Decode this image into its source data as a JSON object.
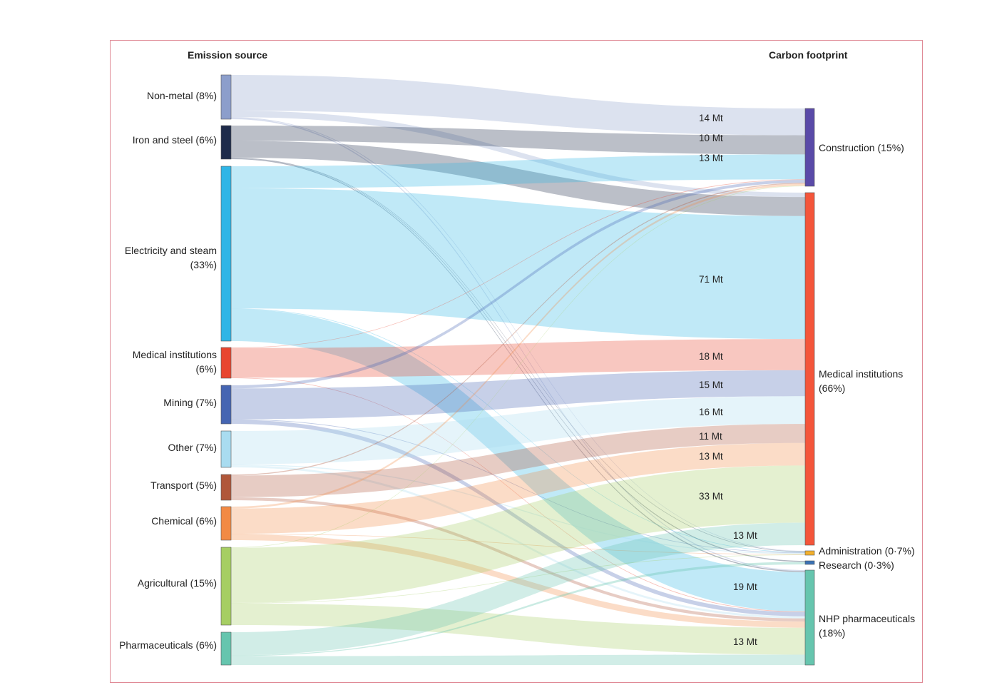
{
  "headers": {
    "left": "Emission source",
    "right": "Carbon footprint"
  },
  "sources": [
    {
      "id": "nonmetal",
      "label": "Non-metal (8%)",
      "color": "#8c9ecb"
    },
    {
      "id": "iron",
      "label": "Iron and steel (6%)",
      "color": "#1e2b4a"
    },
    {
      "id": "elec",
      "label": "Electricity and steam (33%)",
      "color": "#2fb5e6"
    },
    {
      "id": "medsrc",
      "label": "Medical institutions (6%)",
      "color": "#e8452f"
    },
    {
      "id": "mining",
      "label": "Mining (7%)",
      "color": "#4565b2"
    },
    {
      "id": "other",
      "label": "Other (7%)",
      "color": "#a9dcf0"
    },
    {
      "id": "transport",
      "label": "Transport (5%)",
      "color": "#b0573a"
    },
    {
      "id": "chemical",
      "label": "Chemical (6%)",
      "color": "#f28a44"
    },
    {
      "id": "agri",
      "label": "Agricultural (15%)",
      "color": "#a6ce63"
    },
    {
      "id": "pharma",
      "label": "Pharmaceuticals (6%)",
      "color": "#66c5ae"
    }
  ],
  "targets": [
    {
      "id": "construction",
      "label": "Construction (15%)",
      "color": "#5a4aa8"
    },
    {
      "id": "medical",
      "label": "Medical institutions (66%)",
      "color": "#f4553a"
    },
    {
      "id": "admin",
      "label": "Administration (0·7%)",
      "color": "#f2b02d"
    },
    {
      "id": "research",
      "label": "Research (0·3%)",
      "color": "#3a72b5"
    },
    {
      "id": "nhp",
      "label": "NHP pharmaceuticals (18%)",
      "color": "#66c5ae"
    }
  ],
  "flow_labels": [
    "14 Mt",
    "10 Mt",
    "13 Mt",
    "71 Mt",
    "18 Mt",
    "15 Mt",
    "16 Mt",
    "11 Mt",
    "13 Mt",
    "33 Mt",
    "13 Mt",
    "19 Mt",
    "13 Mt"
  ],
  "flows": [
    {
      "source": "nonmetal",
      "target": "construction",
      "value": 14
    },
    {
      "source": "nonmetal",
      "target": "medical",
      "value": 2.5
    },
    {
      "source": "nonmetal",
      "target": "admin",
      "value": 0.3
    },
    {
      "source": "nonmetal",
      "target": "nhp",
      "value": 0.5
    },
    {
      "source": "iron",
      "target": "construction",
      "value": 10
    },
    {
      "source": "iron",
      "target": "medical",
      "value": 11
    },
    {
      "source": "iron",
      "target": "admin",
      "value": 0.3
    },
    {
      "source": "iron",
      "target": "research",
      "value": 0.2
    },
    {
      "source": "iron",
      "target": "nhp",
      "value": 0.5
    },
    {
      "source": "elec",
      "target": "construction",
      "value": 13
    },
    {
      "source": "elec",
      "target": "medical",
      "value": 71
    },
    {
      "source": "elec",
      "target": "admin",
      "value": 0.3
    },
    {
      "source": "elec",
      "target": "nhp",
      "value": 19
    },
    {
      "source": "medsrc",
      "target": "medical",
      "value": 18
    },
    {
      "source": "medsrc",
      "target": "construction",
      "value": 0.3
    },
    {
      "source": "medsrc",
      "target": "nhp",
      "value": 0.3
    },
    {
      "source": "mining",
      "target": "construction",
      "value": 1.5
    },
    {
      "source": "mining",
      "target": "medical",
      "value": 15
    },
    {
      "source": "mining",
      "target": "admin",
      "value": 0.3
    },
    {
      "source": "mining",
      "target": "nhp",
      "value": 2
    },
    {
      "source": "other",
      "target": "medical",
      "value": 16
    },
    {
      "source": "other",
      "target": "admin",
      "value": 0.5
    },
    {
      "source": "other",
      "target": "nhp",
      "value": 1
    },
    {
      "source": "transport",
      "target": "construction",
      "value": 0.5
    },
    {
      "source": "transport",
      "target": "medical",
      "value": 11
    },
    {
      "source": "transport",
      "target": "nhp",
      "value": 1.5
    },
    {
      "source": "chemical",
      "target": "construction",
      "value": 1
    },
    {
      "source": "chemical",
      "target": "medical",
      "value": 13
    },
    {
      "source": "chemical",
      "target": "admin",
      "value": 0.3
    },
    {
      "source": "chemical",
      "target": "nhp",
      "value": 3
    },
    {
      "source": "agri",
      "target": "construction",
      "value": 0.3
    },
    {
      "source": "agri",
      "target": "medical",
      "value": 33
    },
    {
      "source": "agri",
      "target": "admin",
      "value": 0.3
    },
    {
      "source": "agri",
      "target": "nhp",
      "value": 13
    },
    {
      "source": "pharma",
      "target": "medical",
      "value": 13
    },
    {
      "source": "pharma",
      "target": "research",
      "value": 0.5
    },
    {
      "source": "pharma",
      "target": "nhp",
      "value": 5
    }
  ]
}
